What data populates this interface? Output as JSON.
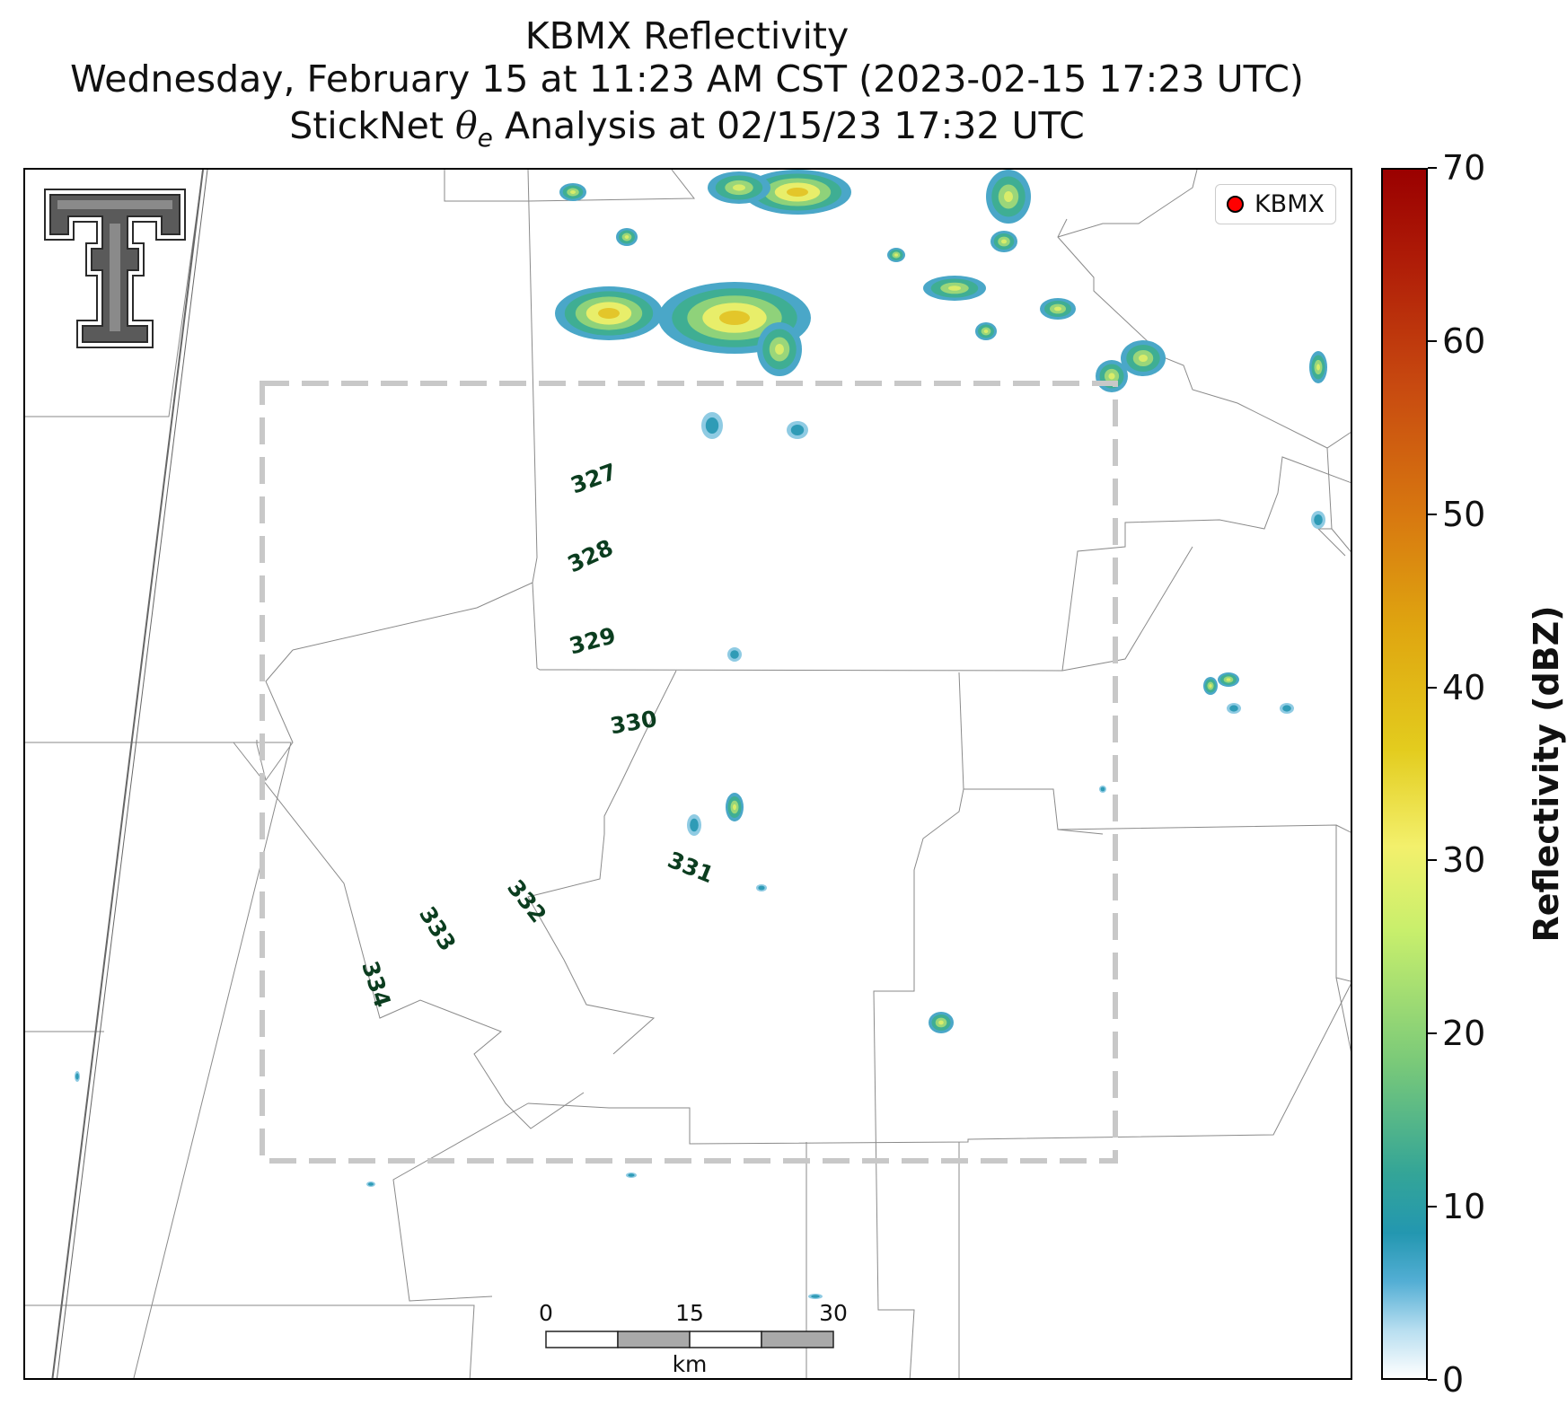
{
  "title": {
    "line1": "KBMX Reflectivity",
    "line2": "Wednesday, February 15 at 11:23 AM CST (2023-02-15 17:23 UTC)",
    "line3_prefix": "StickNet ",
    "line3_symbol": "θ",
    "line3_sub": "e",
    "line3_suffix": " Analysis at 02/15/23 17:32 UTC"
  },
  "legend": {
    "label": "KBMX",
    "marker_color": "#ff0000"
  },
  "colorbar": {
    "label": "Reflectivity (dBZ)",
    "ticks": [
      "0",
      "10",
      "20",
      "30",
      "40",
      "50",
      "60",
      "70"
    ],
    "min": 0,
    "max": 70
  },
  "scale_bar": {
    "labels": [
      "0",
      "15",
      "30"
    ],
    "unit": "km"
  },
  "contours": {
    "color": "#0b3d1f",
    "labels": [
      "327",
      "328",
      "329",
      "330",
      "331",
      "332",
      "333",
      "334"
    ]
  },
  "analysis_box": {
    "color": "#c8c8c8",
    "style": "dashed"
  },
  "logo": {
    "icon": "texas-tech-double-t-logo"
  }
}
